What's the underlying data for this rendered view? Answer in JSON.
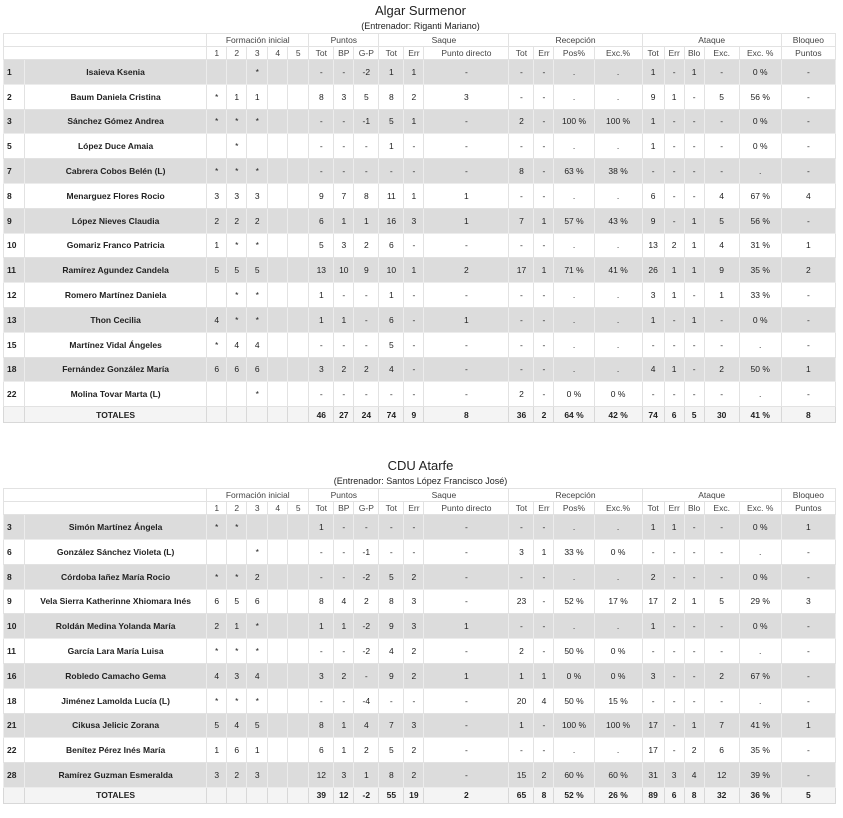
{
  "tables": [
    {
      "title": "Algar Surmenor",
      "coach": "(Entrenador: Riganti Mariano)",
      "groups": [
        "Formación inicial",
        "Puntos",
        "Saque",
        "Recepción",
        "Ataque",
        "Bloqueo"
      ],
      "subheaders": [
        "1",
        "2",
        "3",
        "4",
        "5",
        "Tot",
        "BP",
        "G-P",
        "Tot",
        "Err",
        "Punto directo",
        "Tot",
        "Err",
        "Pos%",
        "Exc.%",
        "Tot",
        "Err",
        "Blo",
        "Exc.",
        "Exc. %",
        "Puntos"
      ],
      "rows": [
        [
          "1",
          "Isaieva Ksenia",
          null,
          null,
          "*",
          null,
          null,
          "-",
          "-",
          "-2",
          "1",
          "1",
          "-",
          "-",
          "-",
          ".",
          ".",
          "1",
          "-",
          "1",
          "-",
          "0 %",
          "-"
        ],
        [
          "2",
          "Baum Daniela Cristina",
          "*",
          "1",
          "1",
          null,
          null,
          "8",
          "3",
          "5",
          "8",
          "2",
          "3",
          "-",
          "-",
          ".",
          ".",
          "9",
          "1",
          "-",
          "5",
          "56 %",
          "-"
        ],
        [
          "3",
          "Sánchez Gómez Andrea",
          "*",
          "*",
          "*",
          null,
          null,
          "-",
          "-",
          "-1",
          "5",
          "1",
          "-",
          "2",
          "-",
          "100 %",
          "100 %",
          "1",
          "-",
          "-",
          "-",
          "0 %",
          "-"
        ],
        [
          "5",
          "López Duce Amaia",
          null,
          "*",
          null,
          null,
          null,
          "-",
          "-",
          "-",
          "1",
          "-",
          "-",
          "-",
          "-",
          ".",
          ".",
          "1",
          "-",
          "-",
          "-",
          "0 %",
          "-"
        ],
        [
          "7",
          "Cabrera Cobos Belén (L)",
          "*",
          "*",
          "*",
          null,
          null,
          "-",
          "-",
          "-",
          "-",
          "-",
          "-",
          "8",
          "-",
          "63 %",
          "38 %",
          "-",
          "-",
          "-",
          "-",
          ".",
          "-"
        ],
        [
          "8",
          "Menarguez Flores Rocio",
          "3",
          "3",
          "3",
          null,
          null,
          "9",
          "7",
          "8",
          "11",
          "1",
          "1",
          "-",
          "-",
          ".",
          ".",
          "6",
          "-",
          "-",
          "4",
          "67 %",
          "4"
        ],
        [
          "9",
          "López Nieves Claudia",
          "2",
          "2",
          "2",
          null,
          null,
          "6",
          "1",
          "1",
          "16",
          "3",
          "1",
          "7",
          "1",
          "57 %",
          "43 %",
          "9",
          "-",
          "1",
          "5",
          "56 %",
          "-"
        ],
        [
          "10",
          "Gomariz Franco Patricia",
          "1",
          "*",
          "*",
          null,
          null,
          "5",
          "3",
          "2",
          "6",
          "-",
          "-",
          "-",
          "-",
          ".",
          ".",
          "13",
          "2",
          "1",
          "4",
          "31 %",
          "1"
        ],
        [
          "11",
          "Ramírez Agundez Candela",
          "5",
          "5",
          "5",
          null,
          null,
          "13",
          "10",
          "9",
          "10",
          "1",
          "2",
          "17",
          "1",
          "71 %",
          "41 %",
          "26",
          "1",
          "1",
          "9",
          "35 %",
          "2"
        ],
        [
          "12",
          "Romero Martínez Daniela",
          null,
          "*",
          "*",
          null,
          null,
          "1",
          "-",
          "-",
          "1",
          "-",
          "-",
          "-",
          "-",
          ".",
          ".",
          "3",
          "1",
          "-",
          "1",
          "33 %",
          "-"
        ],
        [
          "13",
          "Thon Cecilia",
          "4",
          "*",
          "*",
          null,
          null,
          "1",
          "1",
          "-",
          "6",
          "-",
          "1",
          "-",
          "-",
          ".",
          ".",
          "1",
          "-",
          "1",
          "-",
          "0 %",
          "-"
        ],
        [
          "15",
          "Martínez Vidal Ángeles",
          "*",
          "4",
          "4",
          null,
          null,
          "-",
          "-",
          "-",
          "5",
          "-",
          "-",
          "-",
          "-",
          ".",
          ".",
          "-",
          "-",
          "-",
          "-",
          ".",
          "-"
        ],
        [
          "18",
          "Fernández González María",
          "6",
          "6",
          "6",
          null,
          null,
          "3",
          "2",
          "2",
          "4",
          "-",
          "-",
          "-",
          "-",
          ".",
          ".",
          "4",
          "1",
          "-",
          "2",
          "50 %",
          "1"
        ],
        [
          "22",
          "Molina Tovar Marta (L)",
          null,
          null,
          "*",
          null,
          null,
          "-",
          "-",
          "-",
          "-",
          "-",
          "-",
          "2",
          "-",
          "0 %",
          "0 %",
          "-",
          "-",
          "-",
          "-",
          ".",
          "-"
        ]
      ],
      "totals": {
        "label": "TOTALES",
        "cells": [
          "46",
          "27",
          "24",
          "74",
          "9",
          "8",
          "36",
          "2",
          "64 %",
          "42 %",
          "74",
          "6",
          "5",
          "30",
          "41 %",
          "8"
        ]
      }
    },
    {
      "title": "CDU Atarfe",
      "coach": "(Entrenador: Santos López Francisco José)",
      "groups": [
        "Formación inicial",
        "Puntos",
        "Saque",
        "Recepción",
        "Ataque",
        "Bloqueo"
      ],
      "subheaders": [
        "1",
        "2",
        "3",
        "4",
        "5",
        "Tot",
        "BP",
        "G-P",
        "Tot",
        "Err",
        "Punto directo",
        "Tot",
        "Err",
        "Pos%",
        "Exc.%",
        "Tot",
        "Err",
        "Blo",
        "Exc.",
        "Exc. %",
        "Puntos"
      ],
      "rows": [
        [
          "3",
          "Simón Martínez Ángela",
          "*",
          "*",
          null,
          null,
          null,
          "1",
          "-",
          "-",
          "-",
          "-",
          "-",
          "-",
          "-",
          ".",
          ".",
          "1",
          "1",
          "-",
          "-",
          "0 %",
          "1"
        ],
        [
          "6",
          "González Sánchez Violeta (L)",
          null,
          null,
          "*",
          null,
          null,
          "-",
          "-",
          "-1",
          "-",
          "-",
          "-",
          "3",
          "1",
          "33 %",
          "0 %",
          "-",
          "-",
          "-",
          "-",
          ".",
          "-"
        ],
        [
          "8",
          "Córdoba Iañez María Rocio",
          "*",
          "*",
          "2",
          null,
          null,
          "-",
          "-",
          "-2",
          "5",
          "2",
          "-",
          "-",
          "-",
          ".",
          ".",
          "2",
          "-",
          "-",
          "-",
          "0 %",
          "-"
        ],
        [
          "9",
          "Vela Sierra Katherinne Xhiomara Inés",
          "6",
          "5",
          "6",
          null,
          null,
          "8",
          "4",
          "2",
          "8",
          "3",
          "-",
          "23",
          "-",
          "52 %",
          "17 %",
          "17",
          "2",
          "1",
          "5",
          "29 %",
          "3"
        ],
        [
          "10",
          "Roldán Medina Yolanda María",
          "2",
          "1",
          "*",
          null,
          null,
          "1",
          "1",
          "-2",
          "9",
          "3",
          "1",
          "-",
          "-",
          ".",
          ".",
          "1",
          "-",
          "-",
          "-",
          "0 %",
          "-"
        ],
        [
          "11",
          "García Lara María Luisa",
          "*",
          "*",
          "*",
          null,
          null,
          "-",
          "-",
          "-2",
          "4",
          "2",
          "-",
          "2",
          "-",
          "50 %",
          "0 %",
          "-",
          "-",
          "-",
          "-",
          ".",
          "-"
        ],
        [
          "16",
          "Robledo Camacho Gema",
          "4",
          "3",
          "4",
          null,
          null,
          "3",
          "2",
          "-",
          "9",
          "2",
          "1",
          "1",
          "1",
          "0 %",
          "0 %",
          "3",
          "-",
          "-",
          "2",
          "67 %",
          "-"
        ],
        [
          "18",
          "Jiménez Lamolda Lucía (L)",
          "*",
          "*",
          "*",
          null,
          null,
          "-",
          "-",
          "-4",
          "-",
          "-",
          "-",
          "20",
          "4",
          "50 %",
          "15 %",
          "-",
          "-",
          "-",
          "-",
          ".",
          "-"
        ],
        [
          "21",
          "Cikusa Jelicic Zorana",
          "5",
          "4",
          "5",
          null,
          null,
          "8",
          "1",
          "4",
          "7",
          "3",
          "-",
          "1",
          "-",
          "100 %",
          "100 %",
          "17",
          "-",
          "1",
          "7",
          "41 %",
          "1"
        ],
        [
          "22",
          "Benítez Pérez Inés María",
          "1",
          "6",
          "1",
          null,
          null,
          "6",
          "1",
          "2",
          "5",
          "2",
          "-",
          "-",
          "-",
          ".",
          ".",
          "17",
          "-",
          "2",
          "6",
          "35 %",
          "-"
        ],
        [
          "28",
          "Ramírez Guzman Esmeralda",
          "3",
          "2",
          "3",
          null,
          null,
          "12",
          "3",
          "1",
          "8",
          "2",
          "-",
          "15",
          "2",
          "60 %",
          "60 %",
          "31",
          "3",
          "4",
          "12",
          "39 %",
          "-"
        ]
      ],
      "totals": {
        "label": "TOTALES",
        "cells": [
          "39",
          "12",
          "-2",
          "55",
          "19",
          "2",
          "65",
          "8",
          "52 %",
          "26 %",
          "89",
          "6",
          "8",
          "32",
          "36 %",
          "5"
        ]
      }
    }
  ]
}
